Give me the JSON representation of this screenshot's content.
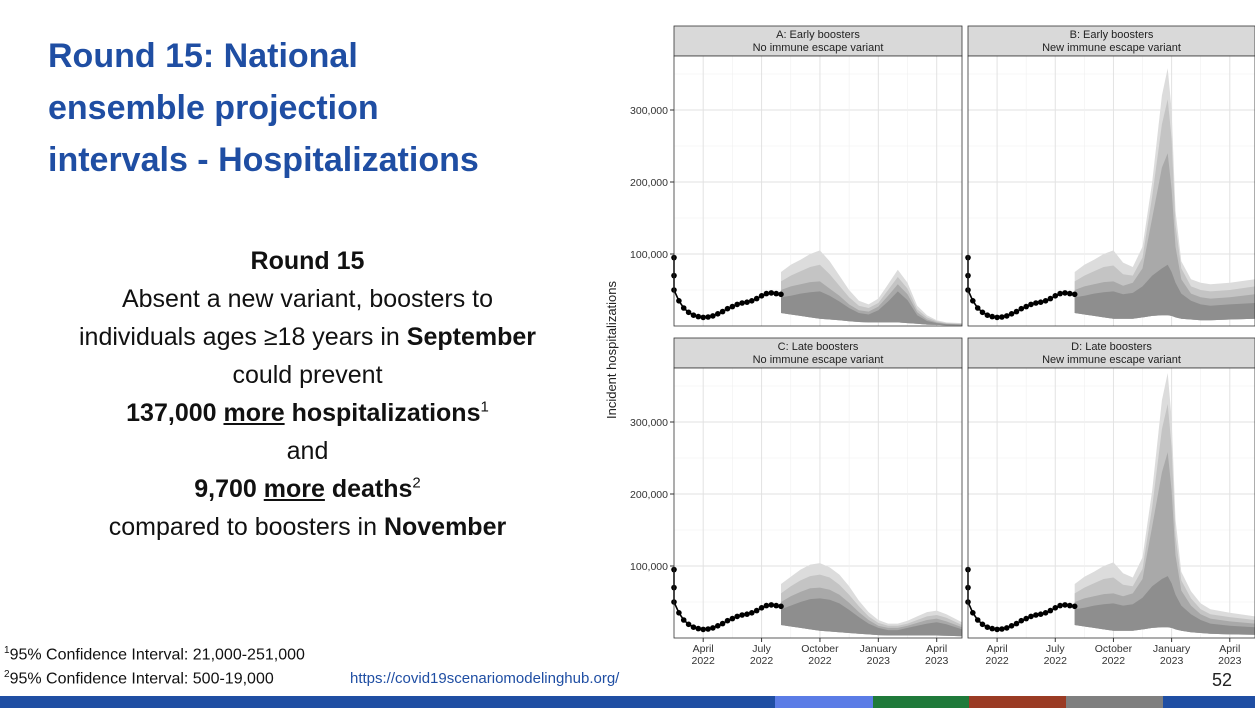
{
  "title_lines": [
    "Round 15: National",
    "ensemble projection",
    "intervals - Hospitalizations"
  ],
  "summary": {
    "heading": "Round 15",
    "line1": "Absent a new variant, boosters to",
    "line2_pre": "individuals ages ≥18 years in ",
    "line2_bold": "September",
    "line3": "could prevent",
    "line4_num": "137,000 ",
    "line4_u": "more",
    "line4_post": " hospitalizations",
    "line4_sup": "1",
    "line5": "and",
    "line6_num": "9,700 ",
    "line6_u": "more",
    "line6_post": " deaths",
    "line6_sup": "2",
    "line7_pre": "compared to boosters in ",
    "line7_bold": "November"
  },
  "footnotes": [
    {
      "sup": "1",
      "text": "95% Confidence Interval: 21,000-251,000"
    },
    {
      "sup": "2",
      "text": "95% Confidence Interval: 500-19,000"
    }
  ],
  "url": "https://covid19scenariomodelinghub.org/",
  "page_number": "52",
  "colors": {
    "title": "#1f4ea3",
    "bottom_bar": [
      "#1f4ea3",
      "#5b7ce6",
      "#1f7a3a",
      "#9a3b24",
      "#7f7f7f",
      "#1f4ea3"
    ]
  },
  "chart_data": {
    "type": "area",
    "ylabel": "Incident hospitalizations",
    "y_ticks": [
      100000,
      200000,
      300000
    ],
    "y_tick_labels": [
      "100,000",
      "200,000",
      "300,000"
    ],
    "ylim": [
      0,
      375000
    ],
    "x_ticks": [
      {
        "month": 2,
        "label1": "April",
        "label2": "2022"
      },
      {
        "month": 5,
        "label1": "July",
        "label2": "2022"
      },
      {
        "month": 8,
        "label1": "October",
        "label2": "2022"
      },
      {
        "month": 11,
        "label1": "January",
        "label2": "2023"
      },
      {
        "month": 14,
        "label1": "April",
        "label2": "2023"
      }
    ],
    "xlim_months": [
      0.5,
      15.3
    ],
    "grid": true,
    "observed": {
      "x": [
        0.0,
        0.25,
        0.5,
        0.75,
        1.0,
        1.25,
        1.5,
        1.75,
        2.0,
        2.25,
        2.5,
        2.75,
        3.0,
        3.25,
        3.5,
        3.75,
        4.0,
        4.25,
        4.5,
        4.75,
        5.0,
        5.25,
        5.5,
        5.75,
        6.0
      ],
      "y": [
        95000,
        70000,
        50000,
        35000,
        25000,
        19000,
        15000,
        13000,
        12000,
        12500,
        14000,
        17000,
        20000,
        24000,
        27000,
        30000,
        32000,
        33000,
        35000,
        38000,
        42000,
        45000,
        46000,
        45000,
        44000
      ]
    },
    "panels": [
      {
        "title": "A: Early boosters",
        "subtitle": "No immune escape variant",
        "x": [
          6.0,
          6.5,
          7.0,
          7.5,
          8.0,
          8.5,
          9.0,
          9.5,
          10.0,
          10.5,
          11.0,
          11.5,
          12.0,
          12.5,
          13.0,
          13.5,
          14.0,
          14.5,
          15.3
        ],
        "outer": [
          75000,
          85000,
          92000,
          100000,
          105000,
          90000,
          70000,
          50000,
          35000,
          30000,
          38000,
          58000,
          78000,
          60000,
          28000,
          15000,
          8000,
          5000,
          4000
        ],
        "mid": [
          62000,
          70000,
          76000,
          82000,
          85000,
          72000,
          56000,
          40000,
          28000,
          25000,
          32000,
          50000,
          68000,
          52000,
          23000,
          12000,
          6500,
          4000,
          3000
        ],
        "inner": [
          50000,
          55000,
          58000,
          61000,
          62000,
          52000,
          42000,
          30000,
          22000,
          20000,
          27000,
          42000,
          58000,
          44000,
          19000,
          9000,
          5000,
          3000,
          2200
        ],
        "core": [
          40000,
          42000,
          45000,
          47000,
          48000,
          42000,
          34000,
          25000,
          18000,
          16000,
          22000,
          34000,
          48000,
          36000,
          15000,
          7000,
          4000,
          2300,
          1700
        ],
        "lower": [
          18000,
          16000,
          14000,
          12000,
          10000,
          9000,
          8000,
          6500,
          5500,
          5000,
          5000,
          5000,
          5000,
          4000,
          3000,
          2000,
          1500,
          1000,
          800
        ]
      },
      {
        "title": "B: Early boosters",
        "subtitle": "New immune escape variant",
        "x": [
          6.0,
          6.5,
          7.0,
          7.5,
          8.0,
          8.5,
          9.0,
          9.5,
          10.0,
          10.5,
          10.8,
          11.0,
          11.2,
          11.5,
          12.0,
          12.5,
          13.0,
          14.0,
          15.3
        ],
        "outer": [
          75000,
          85000,
          92000,
          100000,
          105000,
          88000,
          82000,
          110000,
          200000,
          320000,
          358000,
          300000,
          160000,
          90000,
          65000,
          60000,
          58000,
          60000,
          65000
        ],
        "mid": [
          62000,
          70000,
          76000,
          82000,
          84000,
          72000,
          70000,
          95000,
          180000,
          280000,
          315000,
          260000,
          140000,
          80000,
          55000,
          50000,
          48000,
          50000,
          55000
        ],
        "inner": [
          50000,
          55000,
          58000,
          61000,
          62000,
          56000,
          60000,
          80000,
          150000,
          220000,
          240000,
          190000,
          110000,
          65000,
          45000,
          40000,
          38000,
          40000,
          44000
        ],
        "core": [
          40000,
          42000,
          45000,
          47000,
          48000,
          44000,
          46000,
          55000,
          70000,
          80000,
          85000,
          75000,
          60000,
          45000,
          35000,
          30000,
          28000,
          30000,
          32000
        ],
        "lower": [
          18000,
          16000,
          14000,
          12000,
          10000,
          10000,
          10000,
          12000,
          14000,
          15000,
          15000,
          14000,
          12000,
          10000,
          9000,
          8000,
          8000,
          9000,
          10000
        ]
      },
      {
        "title": "C: Late boosters",
        "subtitle": "No immune escape variant",
        "x": [
          6.0,
          6.5,
          7.0,
          7.5,
          8.0,
          8.5,
          9.0,
          9.5,
          10.0,
          10.5,
          11.0,
          11.5,
          12.0,
          12.5,
          13.0,
          13.5,
          14.0,
          14.5,
          15.3
        ],
        "outer": [
          75000,
          85000,
          95000,
          102000,
          104000,
          98000,
          88000,
          72000,
          52000,
          36000,
          25000,
          20000,
          20000,
          24000,
          30000,
          36000,
          38000,
          33000,
          22000
        ],
        "mid": [
          62000,
          72000,
          80000,
          86000,
          88000,
          84000,
          74000,
          60000,
          44000,
          30000,
          21000,
          17000,
          17000,
          20000,
          25000,
          30000,
          32000,
          28000,
          18000
        ],
        "inner": [
          50000,
          58000,
          64000,
          69000,
          70000,
          67000,
          60000,
          49000,
          36000,
          25000,
          17000,
          14000,
          14000,
          17000,
          21000,
          25000,
          27000,
          23000,
          15000
        ],
        "core": [
          40000,
          45000,
          50000,
          54000,
          55000,
          53000,
          48000,
          39000,
          29000,
          20000,
          14000,
          11000,
          11000,
          14000,
          17000,
          20000,
          22000,
          19000,
          12000
        ],
        "lower": [
          18000,
          16000,
          14000,
          12000,
          10000,
          9000,
          8000,
          7000,
          6000,
          5000,
          4000,
          3500,
          3500,
          3500,
          3500,
          3500,
          3500,
          3000,
          2500
        ]
      },
      {
        "title": "D: Late boosters",
        "subtitle": "New immune escape variant",
        "x": [
          6.0,
          6.5,
          7.0,
          7.5,
          8.0,
          8.5,
          9.0,
          9.5,
          10.0,
          10.5,
          10.8,
          11.0,
          11.2,
          11.5,
          12.0,
          12.5,
          13.0,
          14.0,
          15.3
        ],
        "outer": [
          75000,
          85000,
          92000,
          100000,
          105000,
          90000,
          84000,
          112000,
          205000,
          330000,
          368000,
          305000,
          165000,
          92000,
          65000,
          48000,
          40000,
          35000,
          30000
        ],
        "mid": [
          62000,
          70000,
          76000,
          82000,
          84000,
          74000,
          72000,
          96000,
          182000,
          290000,
          325000,
          265000,
          142000,
          80000,
          55000,
          40000,
          33000,
          29000,
          25000
        ],
        "inner": [
          50000,
          55000,
          58000,
          61000,
          62000,
          58000,
          62000,
          82000,
          155000,
          230000,
          258000,
          205000,
          115000,
          66000,
          45000,
          33000,
          27000,
          23000,
          20000
        ],
        "core": [
          40000,
          42000,
          45000,
          47000,
          48000,
          45000,
          47000,
          56000,
          72000,
          82000,
          86000,
          76000,
          60000,
          45000,
          33000,
          25000,
          20000,
          17000,
          15000
        ],
        "lower": [
          18000,
          16000,
          14000,
          12000,
          10000,
          10000,
          10000,
          12000,
          14000,
          15000,
          15000,
          14000,
          12000,
          10000,
          8000,
          7000,
          6000,
          5000,
          4500
        ]
      }
    ]
  }
}
